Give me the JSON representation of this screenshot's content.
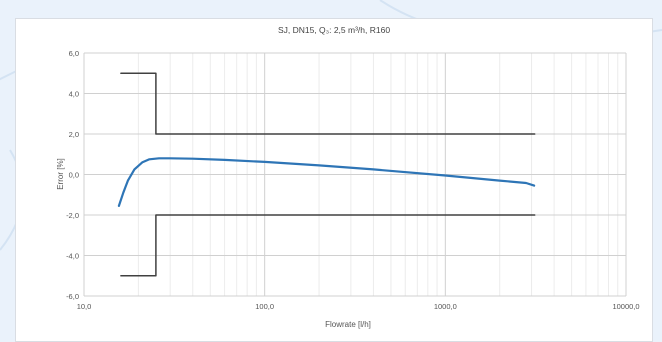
{
  "chart_data": {
    "type": "line",
    "title": "SJ, DN15, Q₃: 2,5 m³/h, R160",
    "xlabel": "Flowrate [l/h]",
    "ylabel": "Error [%]",
    "x_scale": "log",
    "xlim": [
      10,
      10000
    ],
    "ylim": [
      -6,
      6
    ],
    "x_ticks": [
      10,
      100,
      1000,
      10000
    ],
    "x_tick_labels": [
      "10,0",
      "100,0",
      "1000,0",
      "10000,0"
    ],
    "y_ticks": [
      6,
      4,
      2,
      0,
      -2,
      -4,
      -6
    ],
    "y_tick_labels": [
      "6,0",
      "4,0",
      "2,0",
      "0,0",
      "-2,0",
      "-4,0",
      "-6,0"
    ],
    "grid": true,
    "series": [
      {
        "role": "upper-limit",
        "color": "#404040",
        "x": [
          16,
          25,
          25,
          3125
        ],
        "y": [
          5,
          5,
          2,
          2
        ]
      },
      {
        "role": "lower-limit",
        "color": "#404040",
        "x": [
          16,
          25,
          25,
          3125
        ],
        "y": [
          -5,
          -5,
          -2,
          -2
        ]
      },
      {
        "role": "error-curve",
        "color": "#2e75b6",
        "x": [
          15.6,
          16.5,
          17.5,
          19,
          21,
          23,
          26,
          30,
          40,
          60,
          100,
          200,
          400,
          1000,
          2000,
          2800,
          3100
        ],
        "y": [
          -1.55,
          -0.9,
          -0.3,
          0.25,
          0.6,
          0.75,
          0.8,
          0.8,
          0.78,
          0.72,
          0.62,
          0.45,
          0.25,
          -0.05,
          -0.3,
          -0.42,
          -0.55
        ]
      }
    ]
  }
}
